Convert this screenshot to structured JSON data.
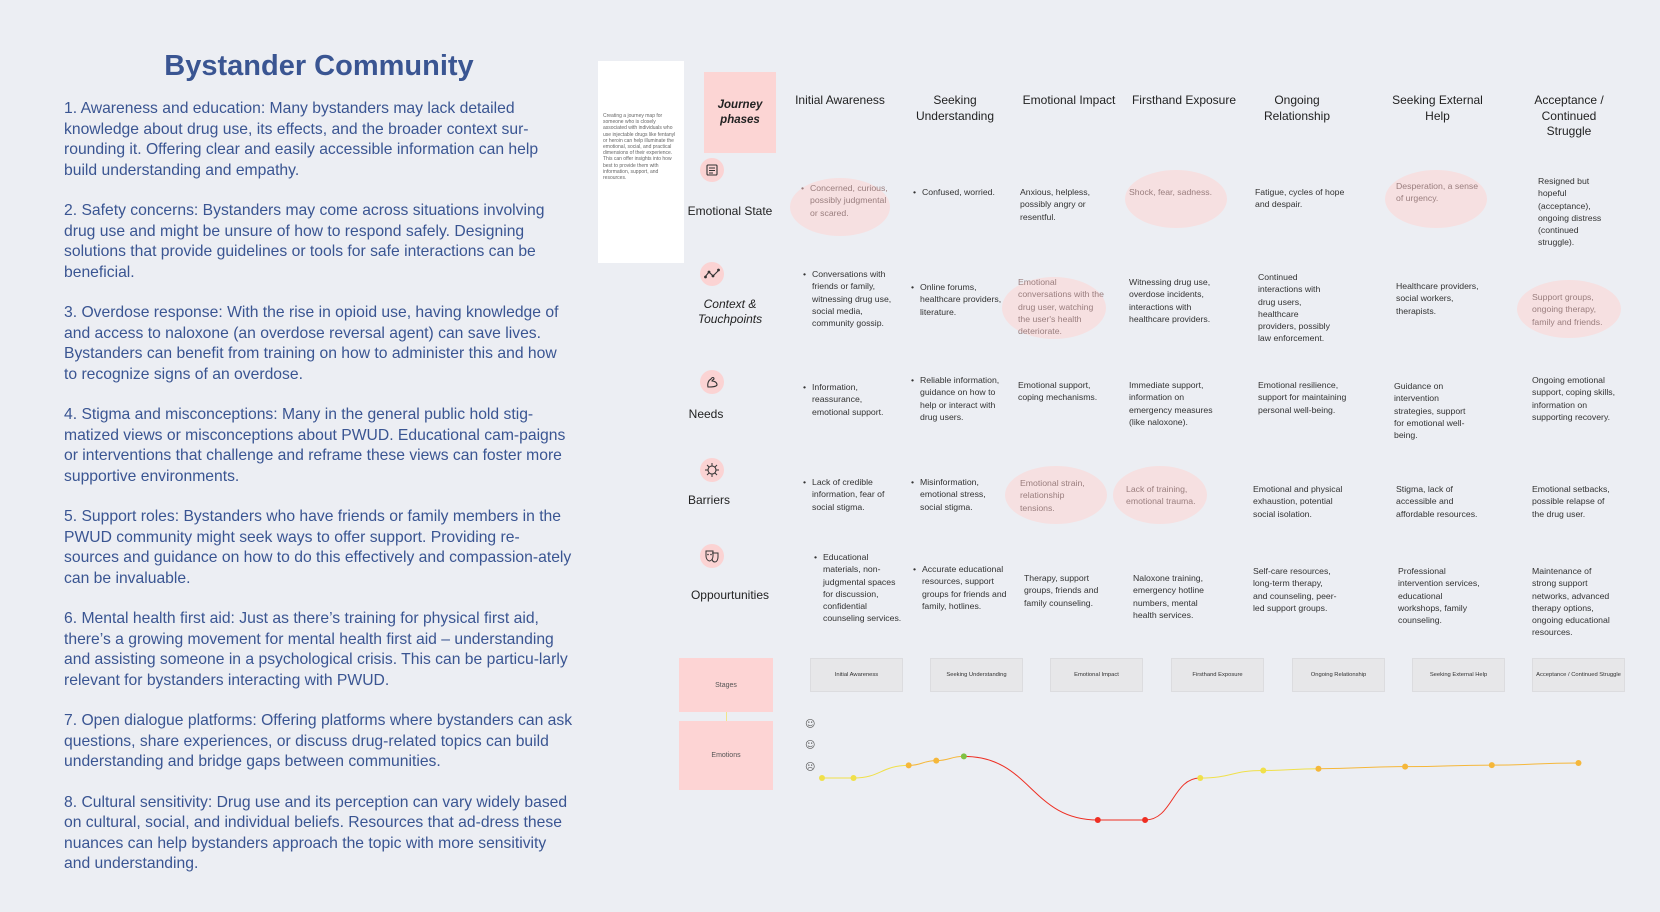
{
  "title": "Bystander Community",
  "paragraphs": [
    "1. Awareness and education: Many bystanders may lack detailed knowledge about drug use, its effects, and the broader context sur-rounding it. Offering clear and easily accessible information can help build understanding and empathy.",
    "2. Safety concerns: Bystanders may come across situations involving drug use and might be unsure of how to respond safely. Designing solutions that provide guidelines or tools for safe interactions can be beneficial.",
    "3. Overdose response: With the rise in opioid use, having knowledge of and access to naloxone (an overdose reversal agent) can save lives. Bystanders can benefit from training on how to administer this and how to recognize signs of an overdose.",
    "4. Stigma and misconceptions: Many in the general public hold stig-matized views or misconceptions about PWUD. Educational cam-paigns or interventions that challenge and reframe these views can foster more supportive environments.",
    "5. Support roles: Bystanders who have friends or family members in the PWUD community might seek ways to offer support. Providing re-sources and guidance on how to do this effectively and compassion-ately can be invaluable.",
    "6. Mental health first aid: Just as there’s training for physical first aid, there’s a growing movement for mental health first aid – understanding and assisting someone in a psychological crisis. This can be particu-larly relevant for bystanders interacting with PWUD.",
    "7. Open dialogue platforms: Offering platforms where bystanders can ask questions, share experiences, or discuss drug-related topics can build understanding and bridge gaps between communities.",
    "8. Cultural sensitivity: Drug use and its perception can vary widely based on cultural, social, and individual beliefs. Resources that ad-dress these nuances can help bystanders approach the topic with more sensitivity and understanding."
  ],
  "note": "Creating a journey map for someone who is closely associated with individuals who use injectable drugs like fentanyl or heroin can help illuminate the emotional, social, and practical dimensions of their experience. This can offer insights into how best to provide them with information, support, and resources.",
  "phases_label": "Journey phases",
  "phases": [
    "Initial Awareness",
    "Seeking Understanding",
    "Emotional Impact",
    "Firsthand Exposure",
    "Ongoing Relationship",
    "Seeking External Help",
    "Acceptance / Continued Struggle"
  ],
  "rows": [
    {
      "label": "Emotional State",
      "icon": "notes-icon",
      "cells": [
        "Concerned, curious, possibly judgmental or scared.",
        "Confused, worried.",
        "Anxious, helpless, possibly angry or resentful.",
        "Shock, fear, sadness.",
        "Fatigue, cycles of hope and despair.",
        "Desperation, a sense of urgency.",
        "Resigned but hopeful (acceptance), ongoing distress (continued struggle)."
      ]
    },
    {
      "label": "Context & Touchpoints",
      "icon": "touchpoints-icon",
      "cells": [
        "Conversations with friends or family, witnessing drug use, social media, community gossip.",
        "Online forums, healthcare providers, literature.",
        "Emotional conversations with the drug user, watching the user's health deteriorate.",
        "Witnessing drug use, overdose incidents, interactions with healthcare providers.",
        "Continued interactions with drug users, healthcare providers, possibly law enforcement.",
        "Healthcare providers, social workers, therapists.",
        "Support groups, ongoing therapy, family and friends."
      ]
    },
    {
      "label": "Needs",
      "icon": "strength-icon",
      "cells": [
        "Information, reassurance, emotional support.",
        "Reliable information, guidance on how to help or interact with drug users.",
        "Emotional support, coping mechanisms.",
        "Immediate support, information on emergency measures (like naloxone).",
        "Emotional resilience, support for maintaining personal well-being.",
        "Guidance on intervention strategies, support for emotional well-being.",
        "Ongoing emotional support, coping skills, information on supporting recovery."
      ]
    },
    {
      "label": "Barriers",
      "icon": "virus-icon",
      "cells": [
        "Lack of credible information, fear of social stigma.",
        "Misinformation, emotional stress, social stigma.",
        "Emotional strain, relationship tensions.",
        "Lack of training, emotional trauma.",
        "Emotional and physical exhaustion, potential social isolation.",
        "Stigma, lack of accessible and affordable resources.",
        "Emotional setbacks, possible relapse of the drug user."
      ]
    },
    {
      "label": "Oppourtunities",
      "icon": "theater-masks-icon",
      "cells": [
        "Educational materials, non-judgmental spaces for discussion, confidential counseling services.",
        "Accurate educational resources, support groups for friends and family, hotlines.",
        "Therapy, support groups, friends and family counseling.",
        "Naloxone training, emergency hotline numbers, mental health services.",
        "Self-care resources, long-term therapy, and counseling, peer-led support groups.",
        "Professional intervention services, educational workshops, family counseling.",
        "Maintenance of strong support networks, advanced therapy options, ongoing educational resources."
      ]
    }
  ],
  "stages_label": "Stages",
  "emotions_label": "Emotions",
  "stages": [
    "Initial Awareness",
    "Seeking Understanding",
    "Emotional Impact",
    "Firsthand Exposure",
    "Ongoing Relationship",
    "Seeking External Help",
    "Acceptance / Continued Struggle"
  ],
  "emotion_scale": [
    "positive",
    "neutral",
    "negative"
  ],
  "emotion_scale_glyphs": [
    "☺",
    "☺",
    "☹"
  ],
  "emotion_points": [
    {
      "t": 0.0,
      "v": 0.0
    },
    {
      "t": 0.04,
      "v": 0.0
    },
    {
      "t": 0.11,
      "v": 0.42
    },
    {
      "t": 0.145,
      "v": 0.58
    },
    {
      "t": 0.18,
      "v": 0.72
    },
    {
      "t": 0.35,
      "v": -1.4
    },
    {
      "t": 0.41,
      "v": -1.4
    },
    {
      "t": 0.48,
      "v": 0.0
    },
    {
      "t": 0.56,
      "v": 0.25
    },
    {
      "t": 0.63,
      "v": 0.31
    },
    {
      "t": 0.74,
      "v": 0.38
    },
    {
      "t": 0.85,
      "v": 0.43
    },
    {
      "t": 0.96,
      "v": 0.5
    }
  ],
  "emotion_colors": {
    "negative": "#ee2e22",
    "low": "#f0e04a",
    "mid": "#f5b73a",
    "high": "#7fc143"
  }
}
